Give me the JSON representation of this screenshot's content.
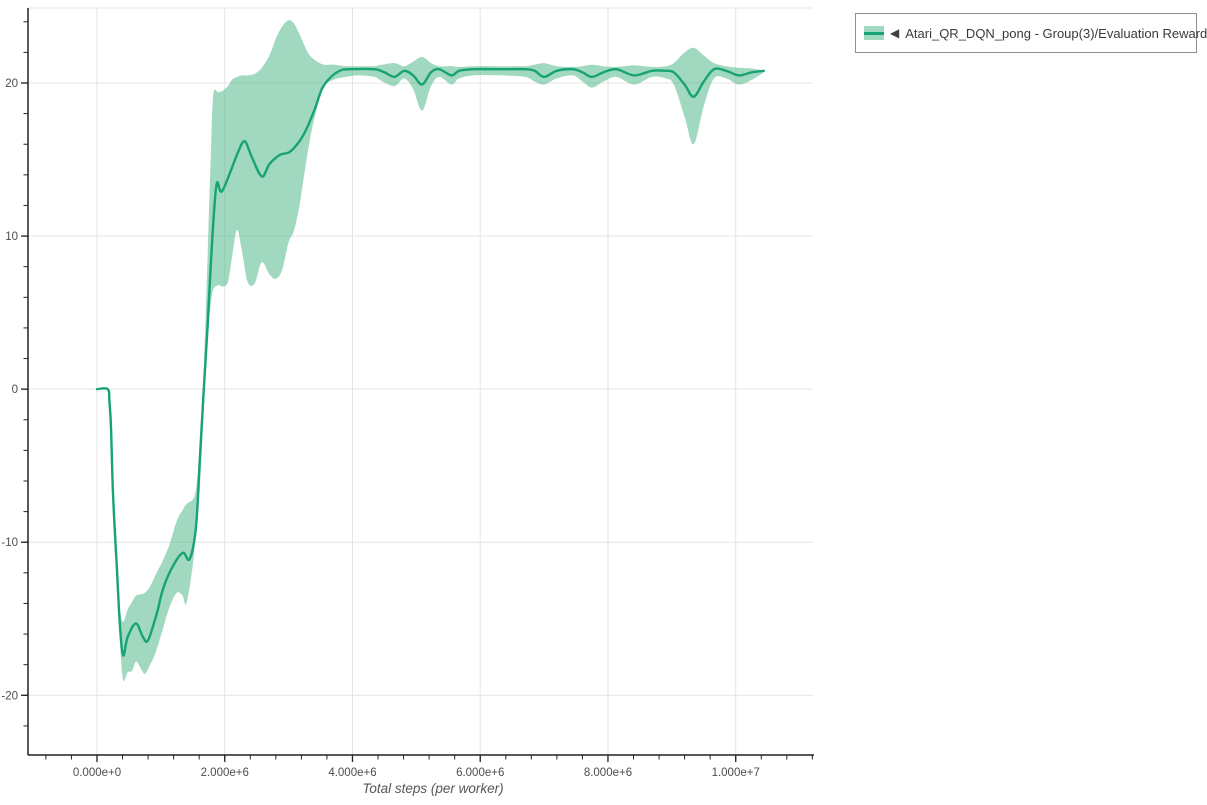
{
  "legend": {
    "marker_glyph": "◀",
    "label": "Atari_QR_DQN_pong - Group(3)/Evaluation Reward"
  },
  "colors": {
    "line": "#18a374",
    "band_fill": "#52b88c",
    "band_opacity": 0.55,
    "band_legend_solid": "#a0d8c0",
    "grid": "#e4e4e4",
    "axis": "#222222",
    "tick_label": "#4d4d4d",
    "legend_border": "#909090",
    "legend_text": "#3a3a3a",
    "axis_title_text": "#555555"
  },
  "chart_data": {
    "type": "line",
    "title": "",
    "xlabel": "Total steps (per worker)",
    "ylabel": "",
    "x_unit": "steps",
    "grid": "major-only",
    "legend_position": "outside-top-right",
    "xlim": [
      -1080000,
      11210000
    ],
    "ylim": [
      -23.9,
      24.9
    ],
    "x_major_ticks": [
      {
        "value": 0,
        "label": "0.000e+0"
      },
      {
        "value": 2000000,
        "label": "2.000e+6"
      },
      {
        "value": 4000000,
        "label": "4.000e+6"
      },
      {
        "value": 6000000,
        "label": "6.000e+6"
      },
      {
        "value": 8000000,
        "label": "8.000e+6"
      },
      {
        "value": 10000000,
        "label": "1.000e+7"
      }
    ],
    "y_major_ticks": [
      {
        "value": 20,
        "label": "20"
      },
      {
        "value": 10,
        "label": "10"
      },
      {
        "value": 0,
        "label": "0"
      },
      {
        "value": -10,
        "label": "-10"
      },
      {
        "value": -20,
        "label": "-20"
      }
    ],
    "x_minor_step": 400000,
    "y_minor_step": 2,
    "series": [
      {
        "name": "Atari_QR_DQN_pong - Group(3)/Evaluation Reward",
        "points": [
          [
            0,
            0
          ],
          [
            170000,
            0
          ],
          [
            195000,
            -0.8
          ],
          [
            220000,
            -2.5
          ],
          [
            250000,
            -6.8
          ],
          [
            310000,
            -11.6
          ],
          [
            360000,
            -15.5
          ],
          [
            410000,
            -17.4
          ],
          [
            480000,
            -16.2
          ],
          [
            610000,
            -15.3
          ],
          [
            720000,
            -16.2
          ],
          [
            800000,
            -16.4
          ],
          [
            940000,
            -14.6
          ],
          [
            1030000,
            -13.1
          ],
          [
            1170000,
            -11.7
          ],
          [
            1340000,
            -10.7
          ],
          [
            1450000,
            -11.1
          ],
          [
            1550000,
            -9.0
          ],
          [
            1610000,
            -4.6
          ],
          [
            1670000,
            -0.1
          ],
          [
            1730000,
            4.0
          ],
          [
            1780000,
            8.0
          ],
          [
            1840000,
            12.0
          ],
          [
            1880000,
            13.5
          ],
          [
            1950000,
            12.9
          ],
          [
            2080000,
            14.1
          ],
          [
            2200000,
            15.4
          ],
          [
            2310000,
            16.2
          ],
          [
            2420000,
            15.2
          ],
          [
            2580000,
            13.9
          ],
          [
            2700000,
            14.7
          ],
          [
            2860000,
            15.3
          ],
          [
            3020000,
            15.5
          ],
          [
            3170000,
            16.2
          ],
          [
            3280000,
            17.0
          ],
          [
            3410000,
            18.3
          ],
          [
            3520000,
            19.6
          ],
          [
            3640000,
            20.3
          ],
          [
            3800000,
            20.8
          ],
          [
            3950000,
            20.9
          ],
          [
            4340000,
            20.9
          ],
          [
            4500000,
            20.7
          ],
          [
            4660000,
            20.4
          ],
          [
            4810000,
            20.8
          ],
          [
            4950000,
            20.5
          ],
          [
            5090000,
            19.9
          ],
          [
            5230000,
            20.7
          ],
          [
            5360000,
            20.9
          ],
          [
            5550000,
            20.5
          ],
          [
            5670000,
            20.8
          ],
          [
            5900000,
            20.9
          ],
          [
            6300000,
            20.9
          ],
          [
            6700000,
            20.9
          ],
          [
            6850000,
            20.8
          ],
          [
            7000000,
            20.4
          ],
          [
            7200000,
            20.8
          ],
          [
            7450000,
            20.9
          ],
          [
            7600000,
            20.7
          ],
          [
            7750000,
            20.4
          ],
          [
            7930000,
            20.7
          ],
          [
            8130000,
            20.9
          ],
          [
            8410000,
            20.5
          ],
          [
            8690000,
            20.8
          ],
          [
            8900000,
            20.8
          ],
          [
            9030000,
            20.7
          ],
          [
            9200000,
            19.9
          ],
          [
            9340000,
            19.1
          ],
          [
            9500000,
            20.1
          ],
          [
            9660000,
            20.9
          ],
          [
            9850000,
            20.8
          ],
          [
            10050000,
            20.5
          ],
          [
            10250000,
            20.7
          ],
          [
            10440000,
            20.8
          ]
        ],
        "band": [
          [
            250000,
            -7.3,
            -6.3
          ],
          [
            310000,
            -12.3,
            -10.9
          ],
          [
            360000,
            -16.6,
            -14.3
          ],
          [
            410000,
            -19.0,
            -15.2
          ],
          [
            480000,
            -18.5,
            -14.4
          ],
          [
            550000,
            -18.4,
            -13.9
          ],
          [
            610000,
            -17.8,
            -13.5
          ],
          [
            680000,
            -18.2,
            -13.4
          ],
          [
            750000,
            -18.6,
            -13.3
          ],
          [
            830000,
            -18.0,
            -12.9
          ],
          [
            910000,
            -17.3,
            -12.2
          ],
          [
            1030000,
            -15.7,
            -11.2
          ],
          [
            1130000,
            -14.3,
            -10.2
          ],
          [
            1250000,
            -13.3,
            -8.6
          ],
          [
            1340000,
            -13.5,
            -7.9
          ],
          [
            1400000,
            -14.0,
            -7.5
          ],
          [
            1500000,
            -11.5,
            -7.2
          ],
          [
            1550000,
            -9.2,
            -6.5
          ],
          [
            1610000,
            -6.5,
            -4.0
          ],
          [
            1670000,
            -1.5,
            1.0
          ],
          [
            1730000,
            3.0,
            8.5
          ],
          [
            1780000,
            5.5,
            15.0
          ],
          [
            1820000,
            6.5,
            19.2
          ],
          [
            1900000,
            6.8,
            19.4
          ],
          [
            1970000,
            6.7,
            19.5
          ],
          [
            2050000,
            7.0,
            19.8
          ],
          [
            2110000,
            8.5,
            20.2
          ],
          [
            2190000,
            10.4,
            20.4
          ],
          [
            2270000,
            9.0,
            20.5
          ],
          [
            2360000,
            7.0,
            20.5
          ],
          [
            2470000,
            6.9,
            20.6
          ],
          [
            2580000,
            8.3,
            21.0
          ],
          [
            2700000,
            7.5,
            21.8
          ],
          [
            2800000,
            7.2,
            22.9
          ],
          [
            2900000,
            7.8,
            23.7
          ],
          [
            3000000,
            9.6,
            24.1
          ],
          [
            3080000,
            10.3,
            23.9
          ],
          [
            3170000,
            12.0,
            23.2
          ],
          [
            3300000,
            15.5,
            22.0
          ],
          [
            3410000,
            17.8,
            21.5
          ],
          [
            3550000,
            19.7,
            21.2
          ],
          [
            3700000,
            20.2,
            21.2
          ],
          [
            3900000,
            20.4,
            21.1
          ],
          [
            4100000,
            20.5,
            21.1
          ],
          [
            4340000,
            20.4,
            21.1
          ],
          [
            4470000,
            20.1,
            21.2
          ],
          [
            4660000,
            19.8,
            21.3
          ],
          [
            4810000,
            20.3,
            21.1
          ],
          [
            4950000,
            19.6,
            21.4
          ],
          [
            5090000,
            18.2,
            21.7
          ],
          [
            5230000,
            19.8,
            21.3
          ],
          [
            5360000,
            20.4,
            21.1
          ],
          [
            5550000,
            19.9,
            21.1
          ],
          [
            5670000,
            20.3,
            21.05
          ],
          [
            5900000,
            20.5,
            21.1
          ],
          [
            6300000,
            20.5,
            21.1
          ],
          [
            6700000,
            20.4,
            21.1
          ],
          [
            6850000,
            20.1,
            21.2
          ],
          [
            7000000,
            19.9,
            21.3
          ],
          [
            7200000,
            20.3,
            21.1
          ],
          [
            7450000,
            20.5,
            21.05
          ],
          [
            7600000,
            20.1,
            21.1
          ],
          [
            7750000,
            19.7,
            21.2
          ],
          [
            7930000,
            20.1,
            21.1
          ],
          [
            8130000,
            20.4,
            21.05
          ],
          [
            8410000,
            19.9,
            21.15
          ],
          [
            8690000,
            20.4,
            21.05
          ],
          [
            8900000,
            20.3,
            21.1
          ],
          [
            9030000,
            19.9,
            21.3
          ],
          [
            9200000,
            17.8,
            22.0
          ],
          [
            9340000,
            16.0,
            22.3
          ],
          [
            9500000,
            18.5,
            21.8
          ],
          [
            9660000,
            20.3,
            21.3
          ],
          [
            9850000,
            20.3,
            21.1
          ],
          [
            10050000,
            19.9,
            21.0
          ],
          [
            10250000,
            20.2,
            20.95
          ],
          [
            10440000,
            20.7,
            20.8
          ]
        ]
      }
    ]
  }
}
